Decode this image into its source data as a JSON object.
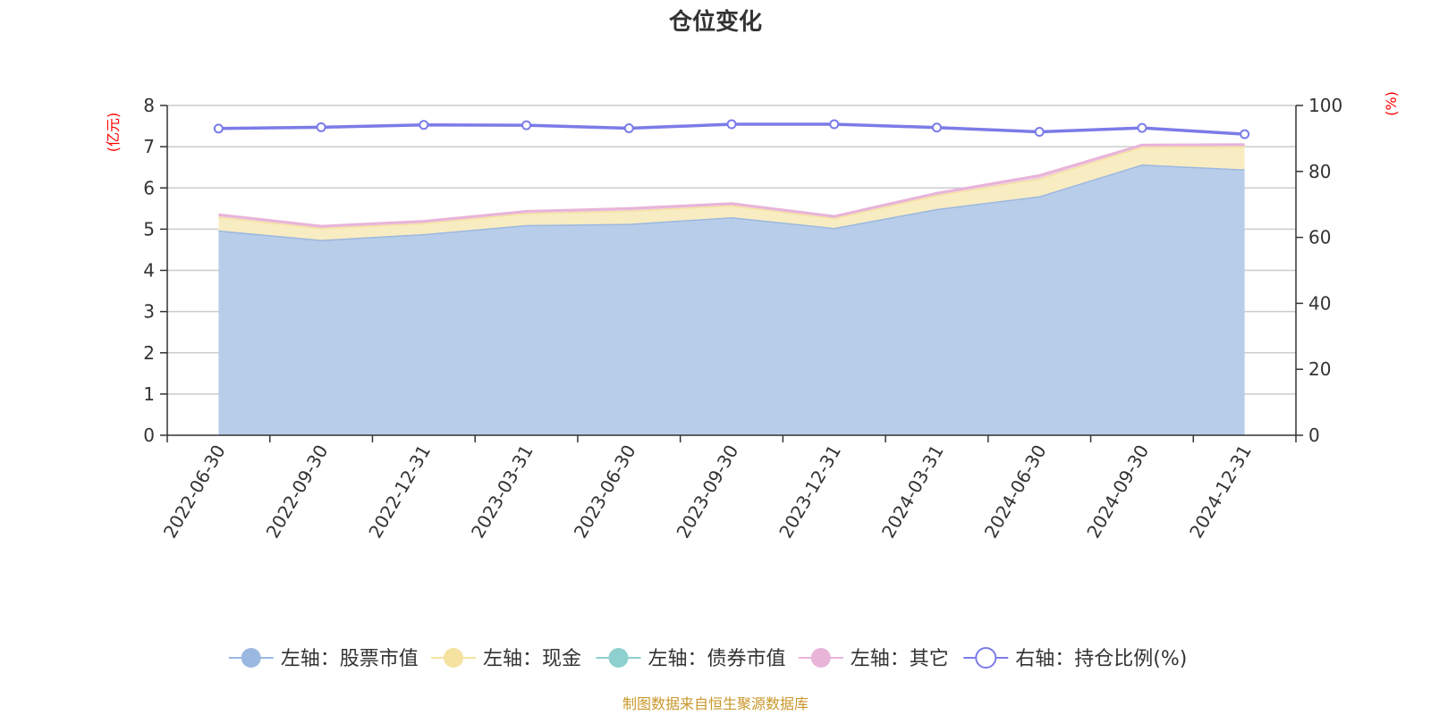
{
  "chart_data": {
    "type": "area",
    "title": "仓位变化",
    "left_axis": {
      "unit": "(亿元)",
      "ylim": [
        0,
        8
      ],
      "ticks": [
        0,
        1,
        2,
        3,
        4,
        5,
        6,
        7,
        8
      ]
    },
    "right_axis": {
      "unit": "(%)",
      "ylim": [
        0,
        100
      ],
      "ticks": [
        0,
        20,
        40,
        60,
        80,
        100
      ]
    },
    "categories": [
      "2022-06-30",
      "2022-09-30",
      "2022-12-31",
      "2023-03-31",
      "2023-06-30",
      "2023-09-30",
      "2023-12-31",
      "2024-03-31",
      "2024-06-30",
      "2024-09-30",
      "2024-12-31"
    ],
    "series": [
      {
        "name": "左轴：股票市值",
        "axis": "left",
        "type": "area",
        "color": "#9bb8e0",
        "fill": "#b8cde9",
        "values": [
          4.97,
          4.74,
          4.88,
          5.1,
          5.13,
          5.29,
          5.03,
          5.49,
          5.8,
          6.57,
          6.45
        ]
      },
      {
        "name": "左轴：现金",
        "axis": "left",
        "type": "area",
        "color": "#f5e2a0",
        "fill": "#f8ecc2",
        "values": [
          0.33,
          0.29,
          0.27,
          0.29,
          0.32,
          0.29,
          0.24,
          0.34,
          0.43,
          0.43,
          0.56
        ]
      },
      {
        "name": "左轴：债券市值",
        "axis": "left",
        "type": "area",
        "color": "#8ecfcf",
        "fill": "#b5e0e0",
        "values": [
          0,
          0,
          0,
          0,
          0,
          0,
          0,
          0,
          0,
          0,
          0
        ]
      },
      {
        "name": "左轴：其它",
        "axis": "left",
        "type": "area",
        "color": "#e8b4d8",
        "fill": "#f0cfe6",
        "values": [
          0.05,
          0.04,
          0.04,
          0.04,
          0.05,
          0.04,
          0.04,
          0.04,
          0.07,
          0.04,
          0.04
        ]
      },
      {
        "name": "右轴：持仓比例(%)",
        "axis": "right",
        "type": "line",
        "color": "#7b7be8",
        "values": [
          93.0,
          93.4,
          94.1,
          94.0,
          93.1,
          94.3,
          94.3,
          93.3,
          92.0,
          93.2,
          91.3
        ]
      }
    ],
    "grid": true,
    "legend_position": "bottom"
  },
  "source_note": "制图数据来自恒生聚源数据库"
}
